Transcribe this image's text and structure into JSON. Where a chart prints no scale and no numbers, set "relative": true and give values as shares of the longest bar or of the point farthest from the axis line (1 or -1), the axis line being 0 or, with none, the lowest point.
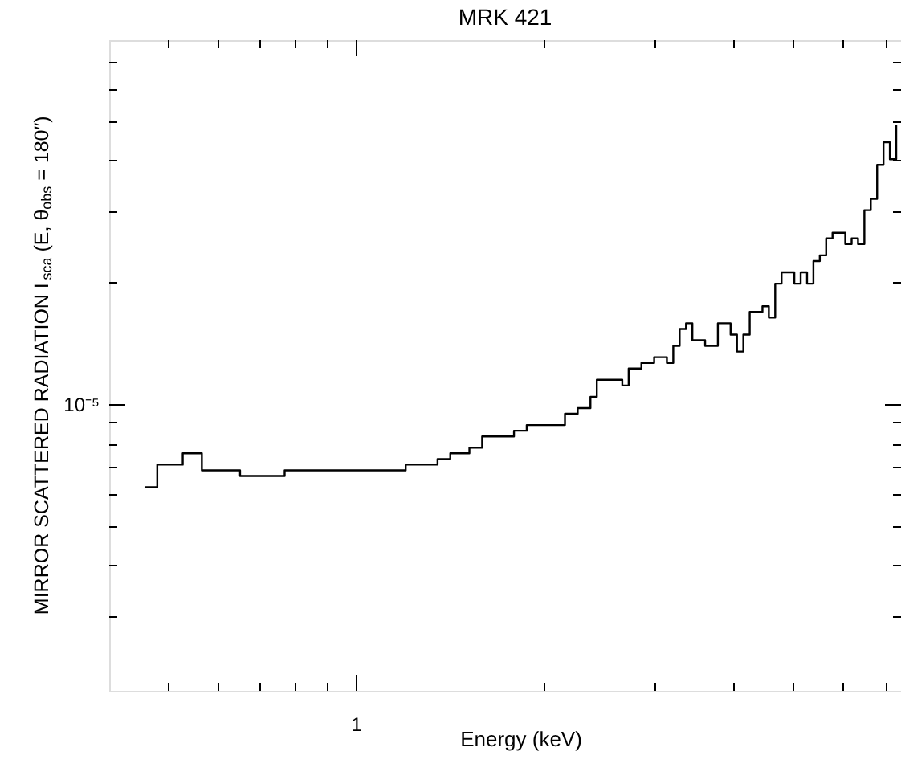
{
  "chart_data": {
    "type": "step",
    "title": "MRK 421",
    "xlabel": "Energy (keV)",
    "ylabel": "MIRROR SCATTERED RADIATION I$_{sca}$ (E, θ$_{obs}$ = 180″)",
    "relative": true,
    "grid": false,
    "marker": "none",
    "line_style": "solid",
    "annotations": [
      "1",
      "10⁻⁵"
    ],
    "categories": [
      null,
      null,
      null,
      null,
      null,
      null,
      null,
      null,
      null,
      null,
      null,
      null,
      null,
      null,
      null,
      null,
      null,
      null,
      null,
      null,
      null,
      null,
      null,
      null,
      null,
      null,
      null,
      null,
      null,
      null,
      null,
      null,
      null,
      null,
      null,
      null,
      null,
      null,
      null,
      null,
      null,
      null,
      null,
      null,
      null,
      null,
      null,
      null,
      null,
      null,
      null,
      null,
      null,
      null,
      null,
      null,
      null,
      null,
      null,
      null,
      null,
      null,
      null,
      null,
      null,
      null,
      null,
      null,
      null,
      null,
      null,
      null,
      null,
      null,
      null,
      null,
      null,
      null,
      null,
      null,
      null,
      null,
      null,
      null,
      null,
      null,
      null,
      null,
      null,
      null,
      null,
      null,
      null,
      null,
      null,
      null,
      null,
      null,
      null,
      null,
      null,
      null,
      null,
      null,
      null,
      null,
      null,
      null,
      null,
      null,
      null,
      null,
      null,
      null,
      null,
      null,
      null,
      null,
      null
    ],
    "series": [
      {
        "color": "#000000",
        "values": [
          0.36,
          0.36,
          0.4,
          0.4,
          0.4,
          0.4,
          0.42,
          0.42,
          0.42,
          0.39,
          0.39,
          0.39,
          0.39,
          0.39,
          0.39,
          0.38,
          0.38,
          0.38,
          0.38,
          0.38,
          0.38,
          0.38,
          0.39,
          0.39,
          0.39,
          0.39,
          0.39,
          0.39,
          0.39,
          0.39,
          0.39,
          0.39,
          0.39,
          0.39,
          0.39,
          0.39,
          0.39,
          0.39,
          0.39,
          0.39,
          0.39,
          0.4,
          0.4,
          0.4,
          0.4,
          0.4,
          0.41,
          0.41,
          0.42,
          0.42,
          0.42,
          0.43,
          0.43,
          0.45,
          0.45,
          0.45,
          0.45,
          0.45,
          0.46,
          0.46,
          0.47,
          0.47,
          0.47,
          0.47,
          0.47,
          0.47,
          0.49,
          0.49,
          0.5,
          0.5,
          0.52,
          0.55,
          0.55,
          0.55,
          0.55,
          0.54,
          0.57,
          0.57,
          0.58,
          0.58,
          0.59,
          0.59,
          0.58,
          0.61,
          0.64,
          0.65,
          0.62,
          0.62,
          0.61,
          0.61,
          0.65,
          0.65,
          0.63,
          0.6,
          0.63,
          0.67,
          0.67,
          0.68,
          0.66,
          0.72,
          0.74,
          0.74,
          0.72,
          0.74,
          0.72,
          0.76,
          0.77,
          0.8,
          0.81,
          0.81,
          0.79,
          0.8,
          0.79,
          0.85,
          0.87,
          0.93,
          0.97,
          0.94,
          1.0
        ]
      }
    ]
  }
}
